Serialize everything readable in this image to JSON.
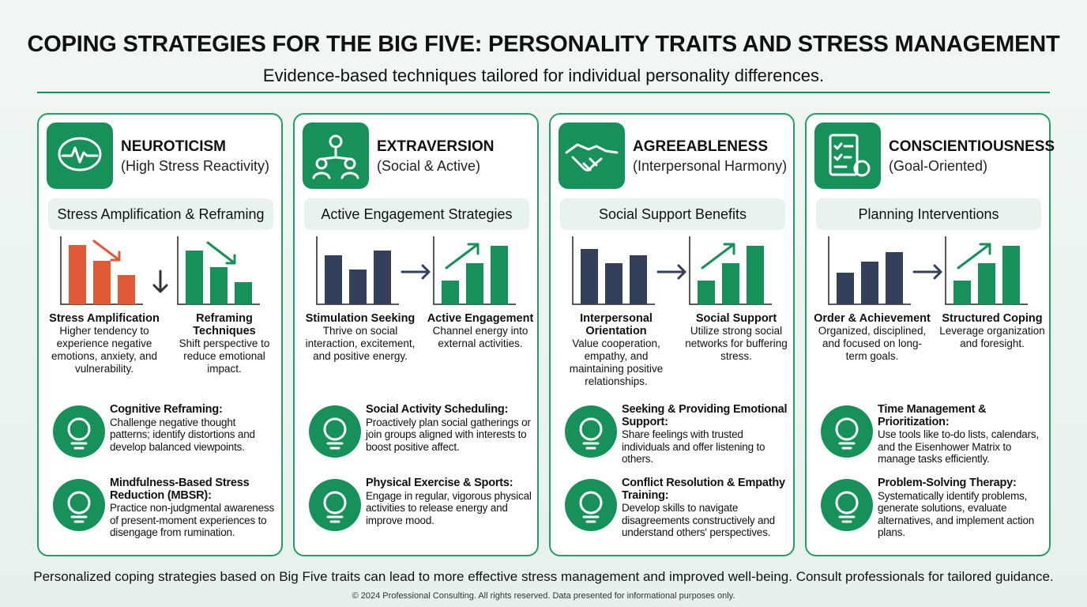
{
  "header": {
    "title": "COPING STRATEGIES FOR THE BIG FIVE: PERSONALITY TRAITS AND STRESS MANAGEMENT",
    "subtitle": "Evidence-based techniques tailored for individual personality differences."
  },
  "cards": [
    {
      "title": "NEUROTICISM",
      "subtitle": "(High Stress Reactivity)",
      "section": "Stress Amplification & Reframing",
      "left": {
        "title": "Stress Amplification",
        "text": "Higher tendency to experience negative emotions, anxiety, and vulnerability."
      },
      "right": {
        "title": "Reframing Techniques",
        "text": "Shift perspective to reduce emotional impact."
      },
      "strategies": [
        {
          "title": "Cognitive Reframing:",
          "text": "Challenge negative thought patterns; identify distortions and develop balanced viewpoints."
        },
        {
          "title": "Mindfulness-Based Stress Reduction (MBSR):",
          "text": "Practice non-judgmental awareness of present-moment experiences to disengage from rumination."
        }
      ]
    },
    {
      "title": "EXTRAVERSION",
      "subtitle": "(Social & Active)",
      "section": "Active Engagement Strategies",
      "left": {
        "title": "Stimulation Seeking",
        "text": "Thrive on social interaction, excitement, and positive energy."
      },
      "right": {
        "title": "Active Engagement",
        "text": "Channel energy into external activities."
      },
      "strategies": [
        {
          "title": "Social Activity Scheduling:",
          "text": "Proactively plan social gatherings or join groups aligned with interests to boost positive affect."
        },
        {
          "title": "Physical Exercise & Sports:",
          "text": "Engage in regular, vigorous physical activities to release energy and improve mood."
        }
      ]
    },
    {
      "title": "AGREEABLENESS",
      "subtitle": "(Interpersonal Harmony)",
      "section": "Social Support Benefits",
      "left": {
        "title": "Interpersonal Orientation",
        "text": "Value cooperation, empathy, and maintaining positive relationships."
      },
      "right": {
        "title": "Social Support",
        "text": "Utilize strong social networks for buffering stress."
      },
      "strategies": [
        {
          "title": "Seeking & Providing Emotional Support:",
          "text": "Share feelings with trusted individuals and offer listening to others."
        },
        {
          "title": "Conflict Resolution & Empathy Training:",
          "text": "Develop skills to navigate disagreements constructively and understand others' perspectives."
        }
      ]
    },
    {
      "title": "CONSCIENTIOUSNESS",
      "subtitle": "(Goal-Oriented)",
      "section": "Planning Interventions",
      "left": {
        "title": "Order & Achievement",
        "text": "Organized, disciplined, and focused on long-term goals."
      },
      "right": {
        "title": "Structured Coping",
        "text": "Leverage organization and foresight."
      },
      "strategies": [
        {
          "title": "Time Management & Prioritization:",
          "text": "Use tools like to-do lists, calendars, and the Eisenhower Matrix to manage tasks efficiently."
        },
        {
          "title": "Problem-Solving Therapy:",
          "text": "Systematically identify problems, generate solutions, evaluate alternatives, and implement action plans."
        }
      ]
    }
  ],
  "footer": {
    "note": "Personalized coping strategies based on Big Five traits can lead to more effective stress management and improved well-being. Consult professionals for tailored guidance.",
    "copyright": "© 2024 Professional Consulting. All rights reserved. Data presented for informational purposes only."
  }
}
